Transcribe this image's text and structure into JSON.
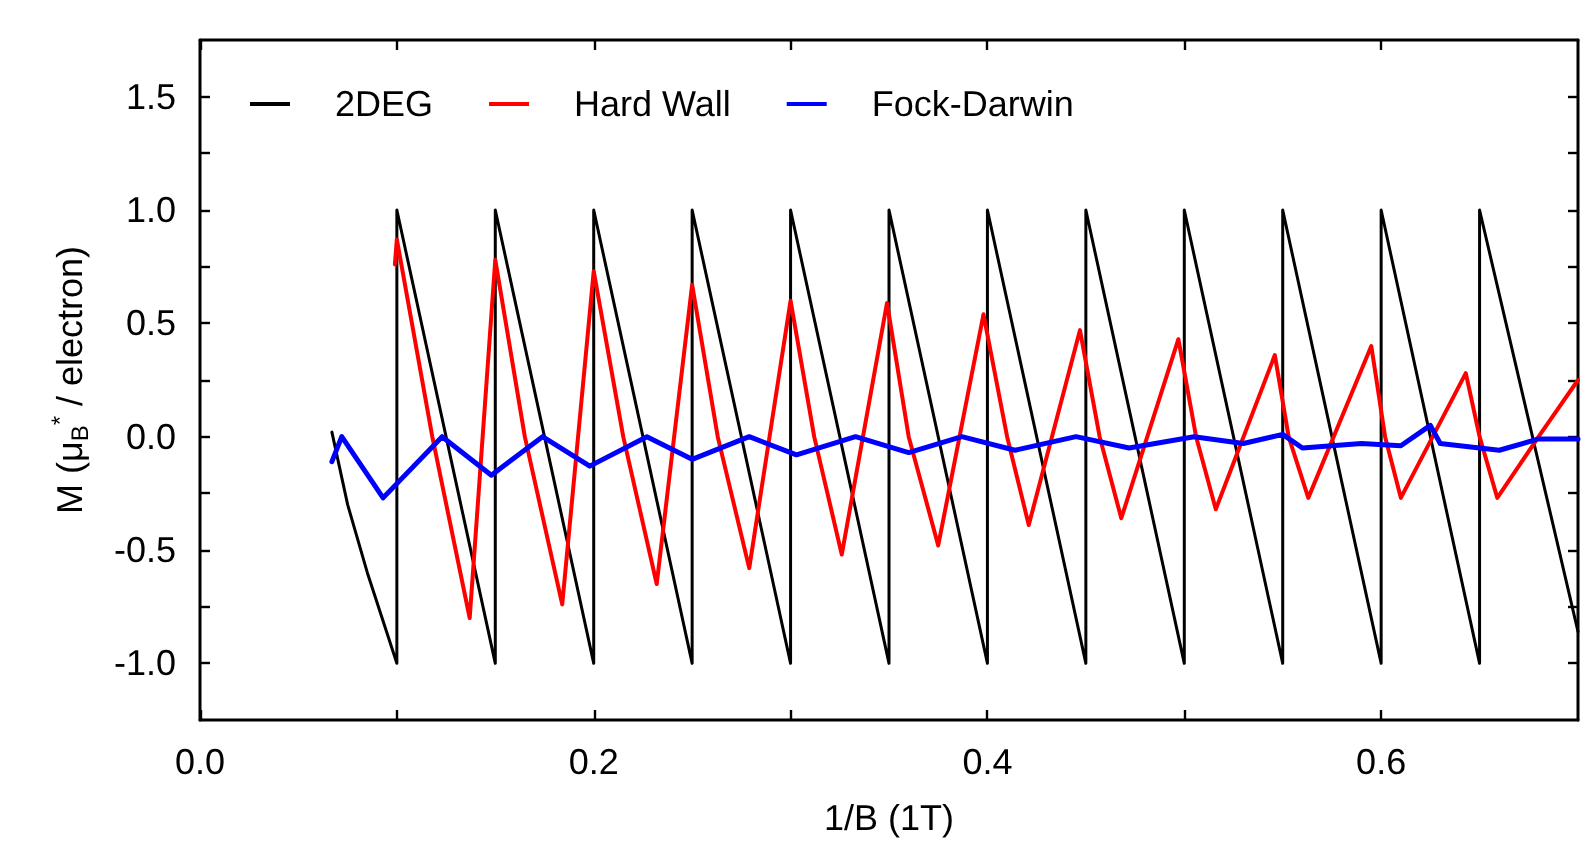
{
  "chart_data": {
    "type": "line",
    "xlabel": "1/B (1T)",
    "ylabel": "M (μ$_{B}$$^{*}$ / electron)",
    "xlim": [
      0,
      0.7
    ],
    "xticks": [
      {
        "value": 0,
        "label": "0.0"
      },
      {
        "value": 0.1,
        "label": null
      },
      {
        "value": 0.2,
        "label": "0.2"
      },
      {
        "value": 0.3,
        "label": null
      },
      {
        "value": 0.4,
        "label": "0.4"
      },
      {
        "value": 0.5,
        "label": null
      },
      {
        "value": 0.6,
        "label": "0.6"
      }
    ],
    "ylim": [
      -1.25,
      1.75
    ],
    "yticks": [
      {
        "value": -1,
        "label": "-1.0"
      },
      {
        "value": -0.75,
        "label": null
      },
      {
        "value": -0.5,
        "label": "-0.5"
      },
      {
        "value": -0.25,
        "label": null
      },
      {
        "value": 0,
        "label": "0.0"
      },
      {
        "value": 0.25,
        "label": null
      },
      {
        "value": 0.5,
        "label": "0.5"
      },
      {
        "value": 0.75,
        "label": null
      },
      {
        "value": 1,
        "label": "1.0"
      },
      {
        "value": 1.25,
        "label": null
      },
      {
        "value": 1.5,
        "label": "1.5"
      }
    ],
    "grid": false,
    "legend": "top",
    "marker": "none",
    "line_style": "solid",
    "series": [
      {
        "name": "2DEG",
        "color": "#000000",
        "x": [
          0.067,
          0.075,
          0.085,
          0.1,
          0.1,
          0.15,
          0.15,
          0.2,
          0.2,
          0.25,
          0.25,
          0.3,
          0.3,
          0.35,
          0.35,
          0.4,
          0.4,
          0.45,
          0.45,
          0.5,
          0.5,
          0.55,
          0.55,
          0.6,
          0.6,
          0.65,
          0.65,
          0.7
        ],
        "values": [
          0.02,
          -0.3,
          -0.6,
          -1,
          1,
          -1,
          1,
          -1,
          1,
          -1,
          1,
          -1,
          1,
          -1,
          1,
          -1,
          1,
          -1,
          1,
          -1,
          1,
          -1,
          1,
          -1,
          1,
          -1,
          1,
          -0.86
        ]
      },
      {
        "name": "Hard Wall",
        "color": "#ff0000",
        "x": [
          0.099,
          0.1,
          0.118,
          0.137,
          0.15,
          0.165,
          0.184,
          0.2,
          0.215,
          0.232,
          0.25,
          0.263,
          0.279,
          0.3,
          0.312,
          0.326,
          0.349,
          0.36,
          0.375,
          0.398,
          0.41,
          0.421,
          0.447,
          0.457,
          0.468,
          0.497,
          0.506,
          0.516,
          0.546,
          0.553,
          0.563,
          0.595,
          0.602,
          0.61,
          0.643,
          0.65,
          0.659,
          0.68,
          0.7
        ],
        "values": [
          0.76,
          0.87,
          0.0,
          -0.8,
          0.78,
          0.0,
          -0.74,
          0.73,
          0.0,
          -0.65,
          0.67,
          0.0,
          -0.58,
          0.6,
          0.0,
          -0.52,
          0.59,
          0.0,
          -0.48,
          0.54,
          0.0,
          -0.39,
          0.47,
          0.0,
          -0.36,
          0.43,
          0.0,
          -0.32,
          0.36,
          0.0,
          -0.27,
          0.4,
          0.0,
          -0.27,
          0.28,
          0.0,
          -0.27,
          0.0,
          0.25
        ]
      },
      {
        "name": "Fock-Darwin",
        "color": "#0000ff",
        "x": [
          0.067,
          0.072,
          0.093,
          0.123,
          0.148,
          0.174,
          0.198,
          0.227,
          0.25,
          0.279,
          0.303,
          0.333,
          0.36,
          0.387,
          0.414,
          0.445,
          0.472,
          0.505,
          0.53,
          0.55,
          0.56,
          0.59,
          0.61,
          0.625,
          0.63,
          0.66,
          0.68,
          0.7
        ],
        "values": [
          -0.11,
          0.0,
          -0.27,
          0.0,
          -0.17,
          0.0,
          -0.13,
          0.0,
          -0.1,
          0.0,
          -0.08,
          0.0,
          -0.07,
          0.0,
          -0.06,
          0.0,
          -0.05,
          0.0,
          -0.03,
          0.01,
          -0.05,
          -0.03,
          -0.04,
          0.05,
          -0.03,
          -0.06,
          -0.01,
          -0.01
        ]
      }
    ]
  }
}
